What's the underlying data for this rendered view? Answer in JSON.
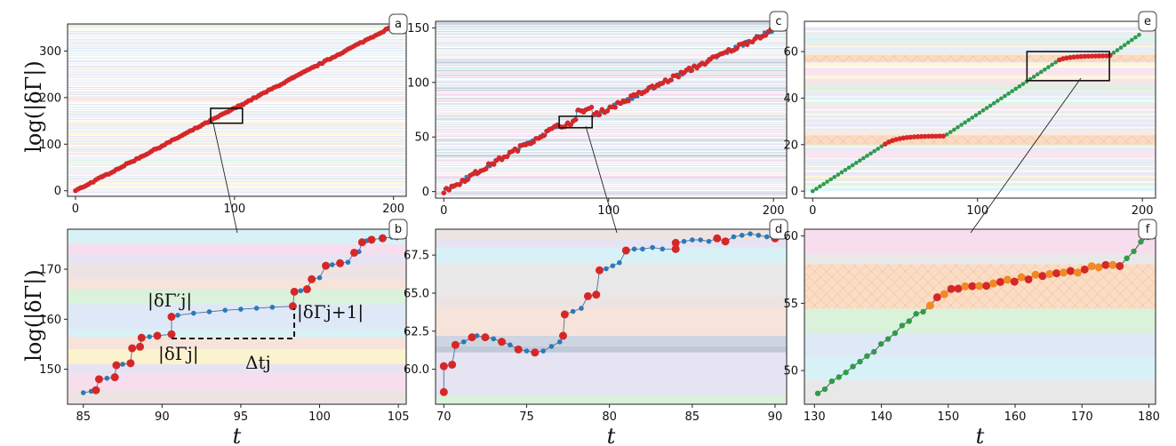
{
  "figure": {
    "ylabel": "log(|δΓ|)",
    "xlabel": "t"
  },
  "annotations": {
    "dgamma_prime": "|δΓ′j|",
    "dgamma_j": "|δΓj|",
    "dgamma_j1": "|δΓj+1|",
    "delta_t": "Δtj"
  },
  "chart_data": [
    {
      "panel": "a",
      "type": "scatter",
      "xlim": [
        -5,
        208
      ],
      "ylim": [
        -12,
        358
      ],
      "xticks": [
        0,
        100,
        200
      ],
      "yticks": [
        0,
        100,
        200,
        300
      ],
      "ylabel": "log(|δΓ|)",
      "xlabel": "",
      "line_slope": 1.77,
      "bands": "pastel-thin",
      "inset_box": {
        "x": [
          85,
          105
        ],
        "y": [
          145,
          177
        ]
      }
    },
    {
      "panel": "b",
      "type": "scatter",
      "xlim": [
        84,
        105.5
      ],
      "ylim": [
        143,
        178
      ],
      "xticks": [
        85,
        90,
        95,
        100,
        105
      ],
      "yticks": [
        150,
        160,
        170
      ],
      "ylabel": "log(|δΓ|)",
      "xlabel": "t",
      "points": [
        [
          85,
          145.3
        ],
        [
          85.5,
          145.6
        ],
        [
          85.8,
          145.8
        ],
        [
          86,
          148
        ],
        [
          86.5,
          148.2
        ],
        [
          87,
          148.4
        ],
        [
          87.1,
          150.8
        ],
        [
          87.5,
          151
        ],
        [
          88,
          151.2
        ],
        [
          88.1,
          154.2
        ],
        [
          88.6,
          154.5
        ],
        [
          88.7,
          156.3
        ],
        [
          89.2,
          156.5
        ],
        [
          89.7,
          156.7
        ],
        [
          90.6,
          157
        ],
        [
          90.6,
          160.5
        ],
        [
          91,
          160.8
        ],
        [
          92,
          161.2
        ],
        [
          93,
          161.5
        ],
        [
          94,
          161.8
        ],
        [
          95,
          162
        ],
        [
          96,
          162.2
        ],
        [
          97,
          162.4
        ],
        [
          98.3,
          162.6
        ],
        [
          98.4,
          165.5
        ],
        [
          98.8,
          165.7
        ],
        [
          99.2,
          166
        ],
        [
          99.5,
          168
        ],
        [
          100,
          168.3
        ],
        [
          100.4,
          170.7
        ],
        [
          100.8,
          170.9
        ],
        [
          101.3,
          171.2
        ],
        [
          101.8,
          171.4
        ],
        [
          102.2,
          173.3
        ],
        [
          102.5,
          173.5
        ],
        [
          102.7,
          175.4
        ],
        [
          103,
          175.7
        ],
        [
          103.3,
          175.9
        ],
        [
          104,
          176.2
        ],
        [
          104.6,
          176.4
        ],
        [
          104.9,
          176.6
        ]
      ],
      "red_points": [
        [
          85.8,
          145.8
        ],
        [
          86,
          148
        ],
        [
          87,
          148.4
        ],
        [
          87.1,
          150.8
        ],
        [
          88,
          151.2
        ],
        [
          88.1,
          154.2
        ],
        [
          88.6,
          154.5
        ],
        [
          88.7,
          156.3
        ],
        [
          89.7,
          156.7
        ],
        [
          90.6,
          157
        ],
        [
          90.6,
          160.5
        ],
        [
          98.3,
          162.6
        ],
        [
          98.4,
          165.5
        ],
        [
          99.2,
          166
        ],
        [
          99.5,
          168
        ],
        [
          100.4,
          170.7
        ],
        [
          101.3,
          171.2
        ],
        [
          102.2,
          173.3
        ],
        [
          102.7,
          175.4
        ],
        [
          103.3,
          175.9
        ],
        [
          104,
          176.2
        ],
        [
          104.9,
          176.6
        ]
      ]
    },
    {
      "panel": "c",
      "type": "scatter",
      "xlim": [
        -5,
        208
      ],
      "ylim": [
        -6,
        156
      ],
      "xticks": [
        0,
        100,
        200
      ],
      "yticks": [
        0,
        50,
        100,
        150
      ],
      "ylabel": "",
      "xlabel": "",
      "bands": "pastel-gray",
      "inset_box": {
        "x": [
          70,
          90
        ],
        "y": [
          58.5,
          69
        ]
      }
    },
    {
      "panel": "d",
      "type": "scatter",
      "xlim": [
        69.5,
        90.7
      ],
      "ylim": [
        57.7,
        69.2
      ],
      "xticks": [
        70,
        75,
        80,
        85,
        90
      ],
      "yticks": [
        60.0,
        62.5,
        65.0,
        67.5
      ],
      "ylabel": "",
      "xlabel": "t",
      "points": [
        [
          70,
          58.5
        ],
        [
          70,
          60.2
        ],
        [
          70.5,
          60.3
        ],
        [
          70.7,
          61.6
        ],
        [
          71.2,
          61.8
        ],
        [
          71.7,
          62.1
        ],
        [
          72,
          62.2
        ],
        [
          72.5,
          62.1
        ],
        [
          73,
          62
        ],
        [
          73.5,
          61.8
        ],
        [
          74,
          61.6
        ],
        [
          74.5,
          61.3
        ],
        [
          75,
          61.2
        ],
        [
          75.5,
          61.1
        ],
        [
          76,
          61.2
        ],
        [
          76.5,
          61.5
        ],
        [
          77,
          61.8
        ],
        [
          77.2,
          62.2
        ],
        [
          77.3,
          63.6
        ],
        [
          77.8,
          63.8
        ],
        [
          78.3,
          64
        ],
        [
          78.7,
          64.8
        ],
        [
          79.2,
          64.9
        ],
        [
          79.4,
          66.5
        ],
        [
          79.8,
          66.6
        ],
        [
          80.2,
          66.8
        ],
        [
          80.6,
          67
        ],
        [
          81,
          67.8
        ],
        [
          81.5,
          67.9
        ],
        [
          82,
          67.9
        ],
        [
          82.6,
          68
        ],
        [
          83.2,
          67.9
        ],
        [
          84,
          67.9
        ],
        [
          84,
          68.3
        ],
        [
          84.5,
          68.4
        ],
        [
          85,
          68.5
        ],
        [
          85.5,
          68.5
        ],
        [
          86,
          68.4
        ],
        [
          86.5,
          68.6
        ],
        [
          87,
          68.4
        ],
        [
          87.5,
          68.7
        ],
        [
          88,
          68.8
        ],
        [
          88.5,
          68.9
        ],
        [
          89,
          68.8
        ],
        [
          89.5,
          68.7
        ],
        [
          90,
          68.6
        ]
      ],
      "red_points": [
        [
          70,
          58.5
        ],
        [
          70,
          60.2
        ],
        [
          70.5,
          60.3
        ],
        [
          70.7,
          61.6
        ],
        [
          71.7,
          62.1
        ],
        [
          72.5,
          62.1
        ],
        [
          73.5,
          61.8
        ],
        [
          74.5,
          61.3
        ],
        [
          75.5,
          61.1
        ],
        [
          77.2,
          62.2
        ],
        [
          77.3,
          63.6
        ],
        [
          78.7,
          64.8
        ],
        [
          79.2,
          64.9
        ],
        [
          79.4,
          66.5
        ],
        [
          81,
          67.8
        ],
        [
          84,
          67.9
        ],
        [
          84,
          68.3
        ],
        [
          86.5,
          68.6
        ],
        [
          87,
          68.4
        ],
        [
          90,
          68.6
        ]
      ]
    },
    {
      "panel": "e",
      "type": "scatter",
      "xlim": [
        -5,
        208
      ],
      "ylim": [
        -3,
        73
      ],
      "xticks": [
        0,
        100,
        200
      ],
      "yticks": [
        0,
        20,
        40,
        60
      ],
      "ylabel": "",
      "xlabel": "",
      "bands": "pastel",
      "hatched_bands": [
        [
          20,
          24
        ],
        [
          55.5,
          58.5
        ]
      ],
      "inset_box": {
        "x": [
          130,
          180
        ],
        "y": [
          47.5,
          60
        ]
      }
    },
    {
      "panel": "f",
      "type": "scatter",
      "xlim": [
        128.5,
        181
      ],
      "ylim": [
        47.5,
        60.5
      ],
      "xticks": [
        130,
        140,
        150,
        160,
        170,
        180
      ],
      "yticks": [
        50,
        55,
        60
      ],
      "ylabel": "",
      "xlabel": "t",
      "hatched_band": [
        54.6,
        57.9
      ]
    }
  ]
}
